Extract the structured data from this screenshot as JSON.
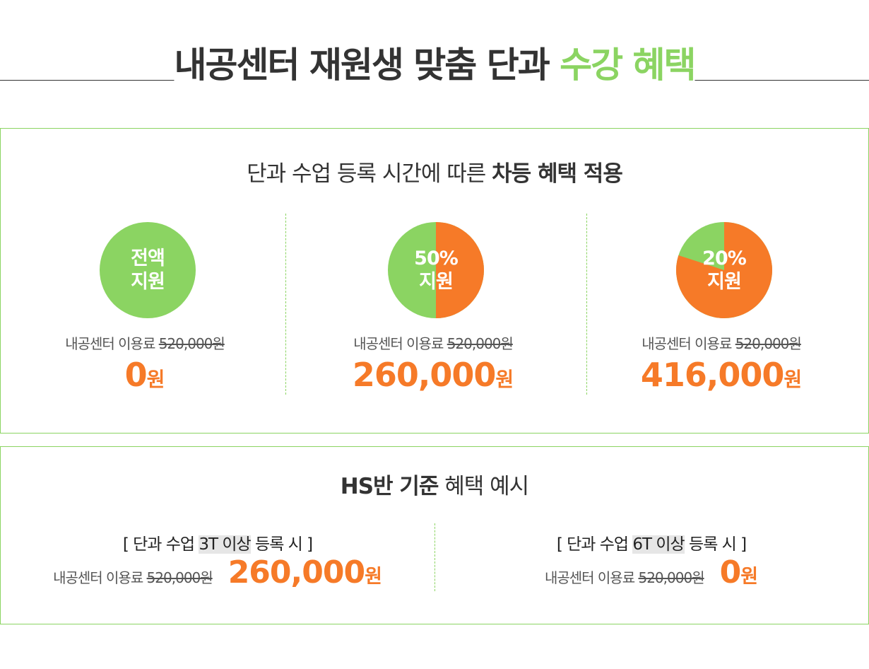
{
  "header": {
    "title_main": "내공센터 재원생 맞춤 단과 ",
    "title_accent": "수강 혜택"
  },
  "tiered": {
    "subtitle_normal": "단과 수업 등록 시간에 따른 ",
    "subtitle_bold": "차등 혜택 적용",
    "columns": [
      {
        "label_line1": "전액",
        "label_line2": "지원",
        "fee_label": "내공센터 이용료 ",
        "fee_original": "520,000원",
        "price_number": "0",
        "price_unit": "원",
        "support_fraction": 1.0
      },
      {
        "label_line1": "50%",
        "label_line2": "지원",
        "fee_label": "내공센터 이용료 ",
        "fee_original": "520,000원",
        "price_number": "260,000",
        "price_unit": "원",
        "support_fraction": 0.5
      },
      {
        "label_line1": "20%",
        "label_line2": "지원",
        "fee_label": "내공센터 이용료 ",
        "fee_original": "520,000원",
        "price_number": "416,000",
        "price_unit": "원",
        "support_fraction": 0.2
      }
    ]
  },
  "example": {
    "subtitle_bold": "HS반 기준",
    "subtitle_normal": " 혜택 예시",
    "items": [
      {
        "cond_pre": "[ 단과 수업 ",
        "cond_highlight": "3T 이상",
        "cond_post": " 등록 시 ]",
        "fee_label": "내공센터 이용료 ",
        "fee_original": "520,000원",
        "price_number": "260,000",
        "price_unit": "원"
      },
      {
        "cond_pre": "[ 단과 수업 ",
        "cond_highlight": "6T 이상",
        "cond_post": " 등록 시 ]",
        "fee_label": "내공센터 이용료 ",
        "fee_original": "520,000원",
        "price_number": "0",
        "price_unit": "원"
      }
    ]
  },
  "colors": {
    "green": "#8bd462",
    "orange": "#f67a28",
    "text": "#333333"
  }
}
